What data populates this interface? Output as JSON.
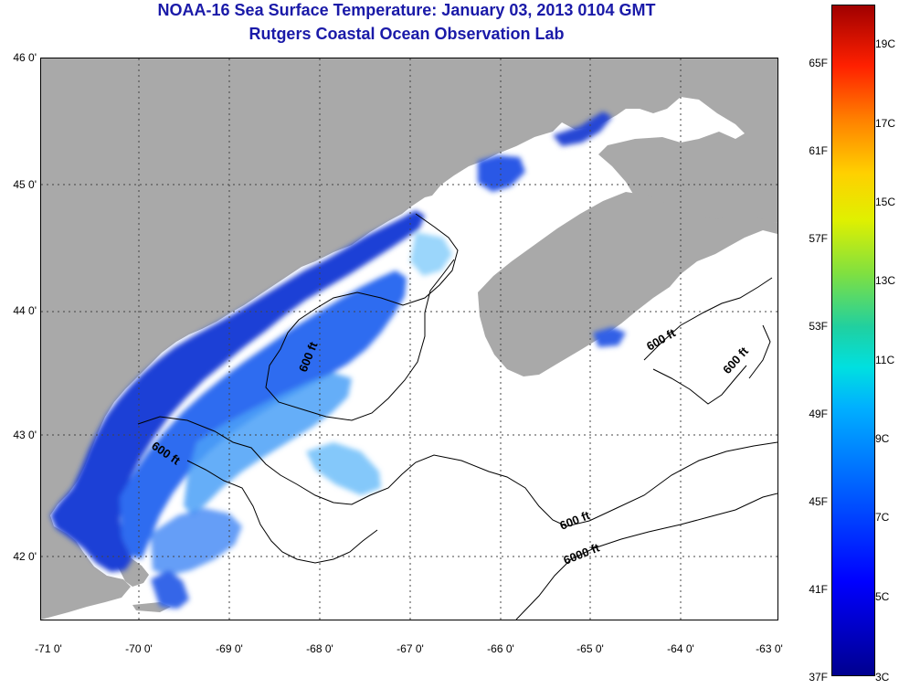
{
  "header": {
    "title": "NOAA-16 Sea Surface Temperature:  January 03, 2013 0104 GMT",
    "subtitle": "Rutgers Coastal Ocean Observation Lab"
  },
  "map": {
    "lat_labels": [
      "46 0'",
      "45 0'",
      "44 0'",
      "43 0'",
      "42 0'"
    ],
    "lon_labels": [
      "-71 0'",
      "-70 0'",
      "-69 0'",
      "-68 0'",
      "-67 0'",
      "-66 0'",
      "-65 0'",
      "-64 0'",
      "-63 0'"
    ],
    "lat_range": [
      41.5,
      46.0
    ],
    "lon_range": [
      -71.0,
      -63.0
    ],
    "contour_labels": [
      "600 ft",
      "600 ft",
      "600 ft",
      "600 ft",
      "600 ft",
      "6000 ft"
    ],
    "colors": {
      "land": "#a9a9a9",
      "no_data": "#ffffff",
      "grid": "#000000"
    }
  },
  "colorbar": {
    "fahrenheit": [
      "65F",
      "61F",
      "57F",
      "53F",
      "49F",
      "45F",
      "41F",
      "37F"
    ],
    "celsius": [
      "19C",
      "17C",
      "15C",
      "13C",
      "11C",
      "9C",
      "7C",
      "5C",
      "3C"
    ],
    "min_c": 3,
    "max_c": 20
  }
}
